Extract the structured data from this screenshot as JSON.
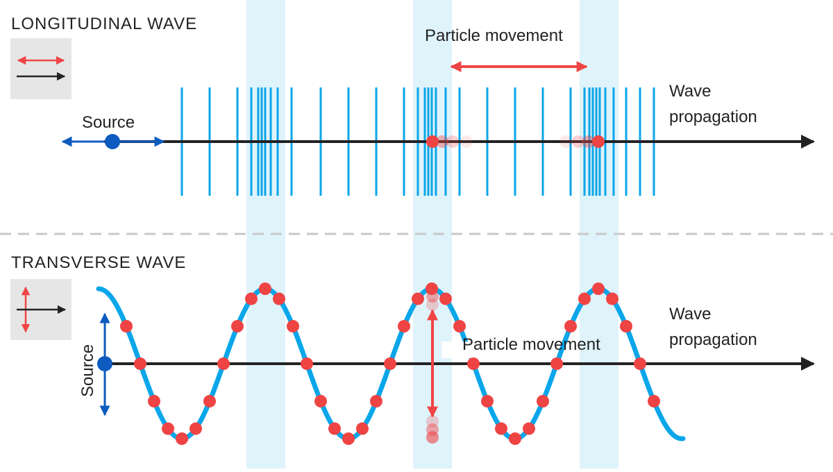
{
  "longitudinal": {
    "title": "LONGITUDINAL WAVE",
    "source_label": "Source",
    "particle_label": "Particle movement",
    "propagation_line1": "Wave",
    "propagation_line2": "propagation"
  },
  "transverse": {
    "title": "TRANSVERSE WAVE",
    "source_label": "Source",
    "particle_label": "Particle movement",
    "propagation_line1": "Wave",
    "propagation_line2": "propagation"
  },
  "colors": {
    "line_blue": "#0aa6ea",
    "wave_blue": "#0aa6ea",
    "highlight": "#dff3fb",
    "particle_red": "#ef4444",
    "source_blue": "#0d5bbf",
    "axis": "#222222",
    "divider": "#c8c8c8",
    "icon_bg": "#e6e6e6"
  },
  "icons": {
    "longitudinal": "parallel-arrows-icon",
    "transverse": "perpendicular-arrows-icon"
  }
}
